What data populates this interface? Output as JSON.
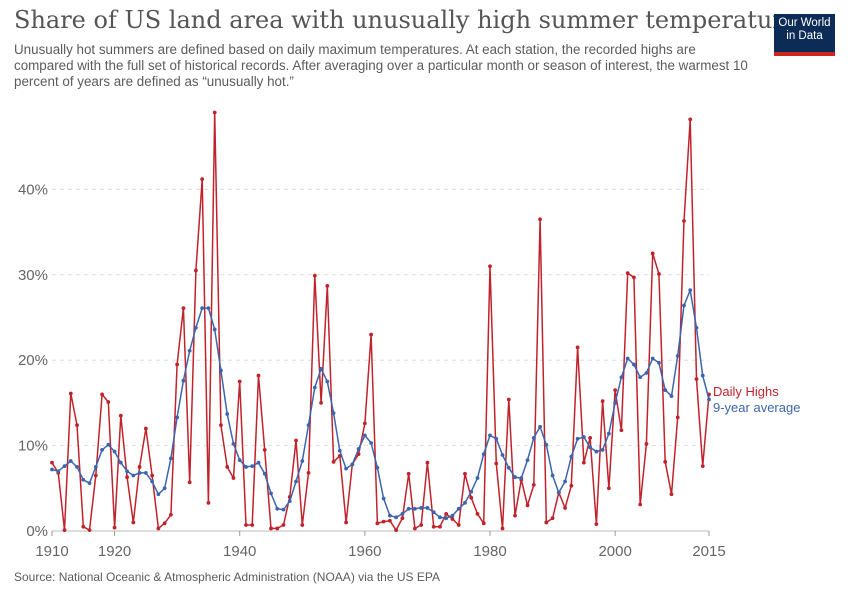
{
  "header": {
    "title": "Share of US land area with unusually high summer temperatures",
    "subtitle": "Unusually hot summers are defined based on daily maximum temperatures. At each station, the recorded highs are compared with the full set of historical records. After averaging over a particular month or season of interest, the warmest 10 percent of years are defined as “unusually hot.”"
  },
  "logo": {
    "line1": "Our World",
    "line2": "in Data",
    "bg": "#0c2c57",
    "accent": "#ce261e"
  },
  "footer": {
    "source": "Source: National Oceanic & Atmospheric Administration (NOAA) via the US EPA"
  },
  "chart_data": {
    "type": "line",
    "x_range": [
      1910,
      2015
    ],
    "y_range": [
      0,
      50
    ],
    "y_ticks": [
      0,
      10,
      20,
      30,
      40
    ],
    "y_tick_labels": [
      "0%",
      "10%",
      "20%",
      "30%",
      "40%"
    ],
    "x_ticks": [
      1910,
      1920,
      1940,
      1960,
      1980,
      2000,
      2015
    ],
    "x_tick_labels": [
      "1910",
      "1920",
      "1940",
      "1960",
      "1980",
      "2000",
      "2015"
    ],
    "grid": "horizontal dashed",
    "legend": "line-end labels, right",
    "series": [
      {
        "name": "Daily Highs",
        "color": "#c0232c",
        "x": [
          1910,
          1911,
          1912,
          1913,
          1914,
          1915,
          1916,
          1917,
          1918,
          1919,
          1920,
          1921,
          1922,
          1923,
          1924,
          1925,
          1926,
          1927,
          1928,
          1929,
          1930,
          1931,
          1932,
          1933,
          1934,
          1935,
          1936,
          1937,
          1938,
          1939,
          1940,
          1941,
          1942,
          1943,
          1944,
          1945,
          1946,
          1947,
          1948,
          1949,
          1950,
          1951,
          1952,
          1953,
          1954,
          1955,
          1956,
          1957,
          1958,
          1959,
          1960,
          1961,
          1962,
          1963,
          1964,
          1965,
          1966,
          1967,
          1968,
          1969,
          1970,
          1971,
          1972,
          1973,
          1974,
          1975,
          1976,
          1977,
          1978,
          1979,
          1980,
          1981,
          1982,
          1983,
          1984,
          1985,
          1986,
          1987,
          1988,
          1989,
          1990,
          1991,
          1992,
          1993,
          1994,
          1995,
          1996,
          1997,
          1998,
          1999,
          2000,
          2001,
          2002,
          2003,
          2004,
          2005,
          2006,
          2007,
          2008,
          2009,
          2010,
          2011,
          2012,
          2013,
          2014,
          2015
        ],
        "values": [
          8.0,
          6.8,
          0.1,
          16.1,
          12.4,
          0.5,
          0.1,
          6.5,
          16.0,
          15.1,
          0.4,
          13.5,
          6.3,
          1.0,
          7.5,
          12.0,
          6.5,
          0.3,
          0.9,
          1.9,
          19.5,
          26.1,
          5.7,
          30.5,
          41.2,
          3.3,
          49.0,
          12.4,
          7.5,
          6.2,
          17.5,
          0.7,
          0.7,
          18.2,
          9.5,
          0.3,
          0.3,
          0.7,
          4.0,
          10.6,
          0.7,
          6.8,
          29.9,
          15.0,
          28.7,
          8.1,
          8.8,
          1.0,
          7.8,
          9.0,
          12.6,
          23.0,
          0.9,
          1.1,
          1.2,
          0.1,
          1.5,
          6.7,
          0.3,
          0.7,
          8.0,
          0.5,
          0.5,
          2.0,
          1.4,
          0.7,
          6.7,
          3.9,
          2.0,
          0.9,
          31.0,
          7.9,
          0.3,
          15.4,
          1.8,
          6.0,
          3.0,
          5.4,
          36.5,
          1.0,
          1.5,
          4.5,
          2.7,
          5.3,
          21.5,
          8.0,
          10.9,
          0.8,
          15.2,
          5.0,
          16.5,
          11.8,
          30.2,
          29.7,
          3.1,
          10.2,
          32.5,
          30.1,
          8.1,
          4.3,
          13.3,
          36.3,
          48.2,
          17.8,
          7.6,
          16.0
        ]
      },
      {
        "name": "9-year average",
        "color": "#3d65ad",
        "x": [
          1910,
          1911,
          1912,
          1913,
          1914,
          1915,
          1916,
          1917,
          1918,
          1919,
          1920,
          1921,
          1922,
          1923,
          1924,
          1925,
          1926,
          1927,
          1928,
          1929,
          1930,
          1931,
          1932,
          1933,
          1934,
          1935,
          1936,
          1937,
          1938,
          1939,
          1940,
          1941,
          1942,
          1943,
          1944,
          1945,
          1946,
          1947,
          1948,
          1949,
          1950,
          1951,
          1952,
          1953,
          1954,
          1955,
          1956,
          1957,
          1958,
          1959,
          1960,
          1961,
          1962,
          1963,
          1964,
          1965,
          1966,
          1967,
          1968,
          1969,
          1970,
          1971,
          1972,
          1973,
          1974,
          1975,
          1976,
          1977,
          1978,
          1979,
          1980,
          1981,
          1982,
          1983,
          1984,
          1985,
          1986,
          1987,
          1988,
          1989,
          1990,
          1991,
          1992,
          1993,
          1994,
          1995,
          1996,
          1997,
          1998,
          1999,
          2000,
          2001,
          2002,
          2003,
          2004,
          2005,
          2006,
          2007,
          2008,
          2009,
          2010,
          2011,
          2012,
          2013,
          2014,
          2015
        ],
        "values": [
          7.2,
          7.0,
          7.6,
          8.2,
          7.5,
          6.0,
          5.6,
          7.5,
          9.5,
          10.1,
          9.3,
          8.0,
          7.0,
          6.5,
          6.8,
          6.8,
          5.8,
          4.3,
          5.0,
          8.5,
          13.3,
          17.6,
          21.1,
          23.8,
          26.1,
          26.1,
          23.6,
          18.8,
          13.7,
          10.2,
          8.3,
          7.5,
          7.6,
          8.0,
          6.7,
          4.4,
          2.6,
          2.5,
          3.5,
          5.8,
          8.2,
          12.4,
          16.8,
          19.0,
          17.5,
          13.8,
          9.4,
          7.3,
          7.8,
          9.6,
          11.2,
          10.3,
          7.4,
          3.8,
          1.8,
          1.6,
          2.0,
          2.6,
          2.6,
          2.7,
          2.7,
          2.2,
          1.6,
          1.5,
          1.8,
          2.6,
          3.3,
          4.6,
          6.2,
          9.0,
          11.2,
          10.8,
          8.9,
          7.4,
          6.3,
          6.2,
          8.3,
          10.9,
          12.2,
          10.1,
          6.5,
          4.5,
          5.8,
          8.7,
          10.8,
          11.0,
          9.8,
          9.3,
          9.5,
          11.4,
          15.0,
          18.0,
          20.2,
          19.5,
          18.0,
          18.5,
          20.2,
          19.7,
          16.5,
          15.8,
          20.5,
          26.4,
          28.2,
          23.8,
          18.2,
          15.4
        ]
      }
    ]
  }
}
